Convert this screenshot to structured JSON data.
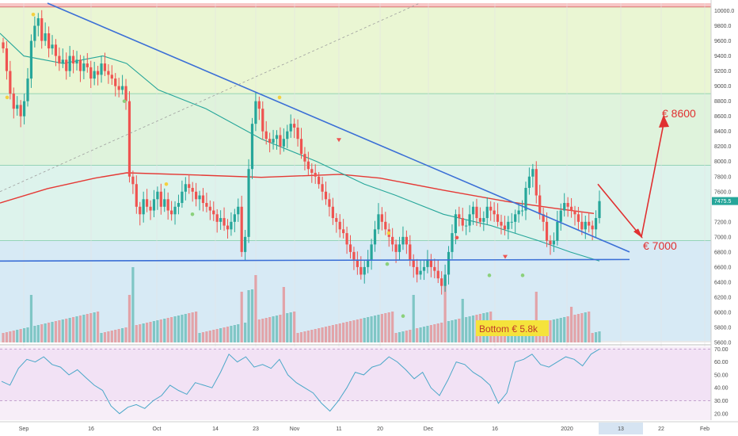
{
  "colors": {
    "up": "#26a69a",
    "down": "#ef5350",
    "vol_up": "#7fc6c5",
    "vol_down": "#e2a3a8",
    "ma_red": "#e53935",
    "ma_teal": "#26a69a",
    "trendline": "#3b6fd6",
    "annotation": "#e03030",
    "rsi_line": "#4aa7c8",
    "rsi_bg": "#f2e2f5",
    "bottom_box": "#f5e33b"
  },
  "price_axis": {
    "ticks": [
      "10000.0",
      "9800.0",
      "9600.0",
      "9400.0",
      "9200.0",
      "9000.0",
      "8800.0",
      "8600.0",
      "8400.0",
      "8200.0",
      "8000.0",
      "7800.0",
      "7600.0",
      "7475.5",
      "7200.0",
      "7000.0",
      "6800.0",
      "6600.0",
      "6400.0",
      "6200.0",
      "6000.0",
      "5800.0",
      "5600.0"
    ],
    "tick_values": [
      10000,
      9800,
      9600,
      9400,
      9200,
      9000,
      8800,
      8600,
      8400,
      8200,
      8000,
      7800,
      7600,
      7475.5,
      7200,
      7000,
      6800,
      6600,
      6400,
      6200,
      6000,
      5800,
      5600
    ],
    "current_price": "7475.5"
  },
  "rsi_axis": {
    "ticks": [
      "70.00",
      "60.00",
      "50.00",
      "40.00",
      "30.00",
      "20.00"
    ],
    "tick_values": [
      70,
      60,
      50,
      40,
      30,
      20
    ]
  },
  "x_axis": {
    "labels": [
      "Sep",
      "16",
      "Oct",
      "14",
      "23",
      "Nov",
      "11",
      "20",
      "Dec",
      "16",
      "2020",
      "13",
      "22",
      "Feb"
    ],
    "highlighted": "13"
  },
  "annotations": {
    "target_high": "€ 8600",
    "target_low": "€ 7000",
    "bottom": "Bottom € 5.8k"
  },
  "chart_data": {
    "type": "candlestick",
    "title": "",
    "ylim": [
      5600,
      10100
    ],
    "rsi_ylim": [
      15,
      72
    ],
    "x_ticks": [
      "Sep",
      "16",
      "Oct",
      "14",
      "23",
      "Nov",
      "11",
      "20",
      "Dec",
      "16",
      "2020",
      "13",
      "22",
      "Feb"
    ],
    "candles_close": [
      9500,
      9200,
      8900,
      8700,
      8750,
      8600,
      8800,
      9100,
      9600,
      9800,
      9900,
      9600,
      9700,
      9500,
      9550,
      9400,
      9300,
      9350,
      9200,
      9400,
      9300,
      9350,
      9200,
      9300,
      9250,
      9100,
      9200,
      9150,
      9300,
      9200,
      9150,
      9100,
      9000,
      8950,
      9000,
      8800,
      7800,
      7700,
      7400,
      7300,
      7500,
      7400,
      7350,
      7500,
      7600,
      7400,
      7500,
      7350,
      7300,
      7400,
      7450,
      7600,
      7700,
      7650,
      7600,
      7500,
      7550,
      7450,
      7400,
      7350,
      7300,
      7200,
      7250,
      7150,
      7100,
      7200,
      7300,
      7400,
      6800,
      7000,
      7900,
      8500,
      8800,
      8700,
      8400,
      8300,
      8250,
      8300,
      8350,
      8200,
      8300,
      8400,
      8500,
      8450,
      8300,
      8100,
      8000,
      7900,
      7850,
      7800,
      7700,
      7600,
      7500,
      7400,
      7250,
      7200,
      7100,
      7050,
      6900,
      6800,
      6700,
      6600,
      6500,
      6600,
      6700,
      6900,
      7100,
      7300,
      7200,
      7100,
      7000,
      6900,
      6800,
      6900,
      7000,
      6900,
      6700,
      6600,
      6500,
      6550,
      6600,
      6700,
      6600,
      6550,
      6450,
      6350,
      6500,
      6800,
      7050,
      7300,
      7250,
      7150,
      7150,
      7300,
      7400,
      7250,
      7200,
      7250,
      7400,
      7350,
      7300,
      7200,
      7150,
      7100,
      7200,
      7200,
      7300,
      7350,
      7350,
      7650,
      7800,
      7900,
      7550,
      7300,
      7200,
      6950,
      6900,
      6950,
      7200,
      7350,
      7450,
      7400,
      7350,
      7300,
      7200,
      7100,
      7200,
      7150,
      7100,
      7250,
      7475
    ],
    "moving_averages": [
      {
        "color": "#e53935",
        "values_note": "200-period MA",
        "start": 7450,
        "peak": 7850,
        "end": 7200
      },
      {
        "color": "#26a69a",
        "values_note": "50-period MA",
        "start": 9700,
        "end": 6680
      }
    ],
    "rsi_values": [
      45,
      42,
      55,
      62,
      60,
      64,
      58,
      56,
      50,
      54,
      48,
      42,
      38,
      26,
      20,
      25,
      27,
      24,
      30,
      34,
      42,
      38,
      35,
      44,
      42,
      40,
      52,
      66,
      60,
      64,
      56,
      58,
      55,
      62,
      50,
      44,
      40,
      36,
      28,
      22,
      30,
      40,
      52,
      50,
      56,
      58,
      64,
      60,
      54,
      47,
      52,
      40,
      34,
      46,
      60,
      58,
      52,
      48,
      42,
      28,
      36,
      60,
      62,
      66,
      58,
      56,
      60,
      64,
      62,
      57,
      66,
      70
    ]
  }
}
